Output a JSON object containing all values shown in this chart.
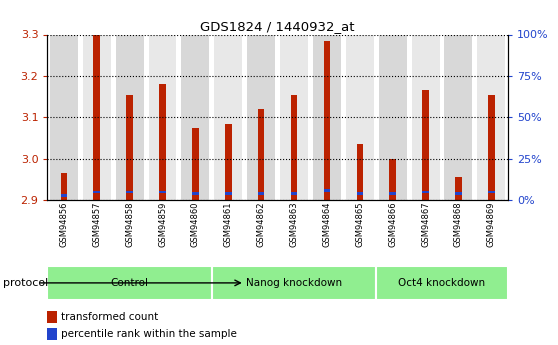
{
  "title": "GDS1824 / 1440932_at",
  "samples": [
    "GSM94856",
    "GSM94857",
    "GSM94858",
    "GSM94859",
    "GSM94860",
    "GSM94861",
    "GSM94862",
    "GSM94863",
    "GSM94864",
    "GSM94865",
    "GSM94866",
    "GSM94867",
    "GSM94868",
    "GSM94869"
  ],
  "transformed_count": [
    2.965,
    3.3,
    3.155,
    3.18,
    3.075,
    3.085,
    3.12,
    3.155,
    3.285,
    3.035,
    3.0,
    3.165,
    2.955,
    3.155
  ],
  "percentile_rank_pct": [
    2,
    4,
    4,
    4,
    3,
    3,
    3,
    3,
    5,
    3,
    3,
    4,
    3,
    4
  ],
  "group_names": [
    "Control",
    "Nanog knockdown",
    "Oct4 knockdown"
  ],
  "group_ranges": [
    [
      0,
      4
    ],
    [
      5,
      9
    ],
    [
      10,
      13
    ]
  ],
  "bar_color_red": "#bb2200",
  "bar_color_blue": "#2244cc",
  "ylim_left": [
    2.9,
    3.3
  ],
  "ylim_right": [
    0,
    100
  ],
  "yticks_left": [
    2.9,
    3.0,
    3.1,
    3.2,
    3.3
  ],
  "yticks_right": [
    0,
    25,
    50,
    75,
    100
  ],
  "ytick_labels_right": [
    "0%",
    "25%",
    "50%",
    "75%",
    "100%"
  ],
  "background_color": "#ffffff",
  "col_bg_odd": "#d8d8d8",
  "col_bg_even": "#e8e8e8",
  "group_color": "#90ee90",
  "legend_red": "transformed count",
  "legend_blue": "percentile rank within the sample"
}
